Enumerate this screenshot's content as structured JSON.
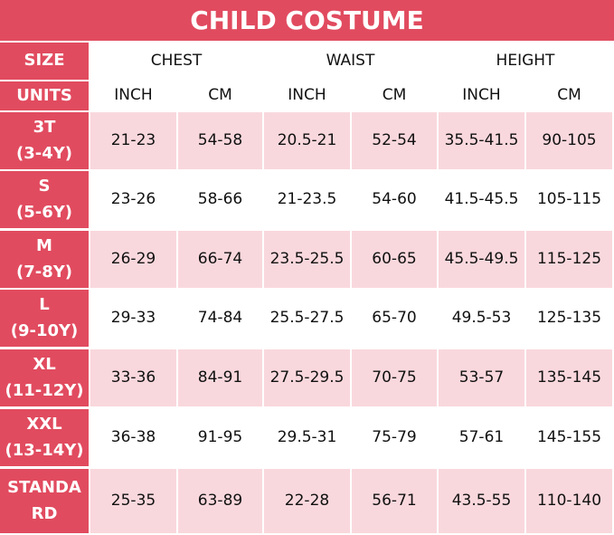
{
  "title": "CHILD COSTUME",
  "table": {
    "size_header": "SIZE",
    "units_header": "UNITS",
    "groups": [
      "CHEST",
      "WAIST",
      "HEIGHT"
    ],
    "units": [
      "INCH",
      "CM",
      "INCH",
      "CM",
      "INCH",
      "CM"
    ],
    "rows": [
      {
        "size": "3T",
        "age": "(3-4Y)",
        "values": [
          "21-23",
          "54-58",
          "20.5-21",
          "52-54",
          "35.5-41.5",
          "90-105"
        ]
      },
      {
        "size": "S",
        "age": "(5-6Y)",
        "values": [
          "23-26",
          "58-66",
          "21-23.5",
          "54-60",
          "41.5-45.5",
          "105-115"
        ]
      },
      {
        "size": "M",
        "age": "(7-8Y)",
        "values": [
          "26-29",
          "66-74",
          "23.5-25.5",
          "60-65",
          "45.5-49.5",
          "115-125"
        ]
      },
      {
        "size": "L",
        "age": "(9-10Y)",
        "values": [
          "29-33",
          "74-84",
          "25.5-27.5",
          "65-70",
          "49.5-53",
          "125-135"
        ]
      },
      {
        "size": "XL",
        "age": "(11-12Y)",
        "values": [
          "33-36",
          "84-91",
          "27.5-29.5",
          "70-75",
          "53-57",
          "135-145"
        ]
      },
      {
        "size": "XXL",
        "age": "(13-14Y)",
        "values": [
          "36-38",
          "91-95",
          "29.5-31",
          "75-79",
          "57-61",
          "145-155"
        ]
      },
      {
        "size": "STANDARD",
        "values": [
          "25-35",
          "63-89",
          "22-28",
          "56-71",
          "43.5-55",
          "110-140"
        ]
      }
    ]
  }
}
